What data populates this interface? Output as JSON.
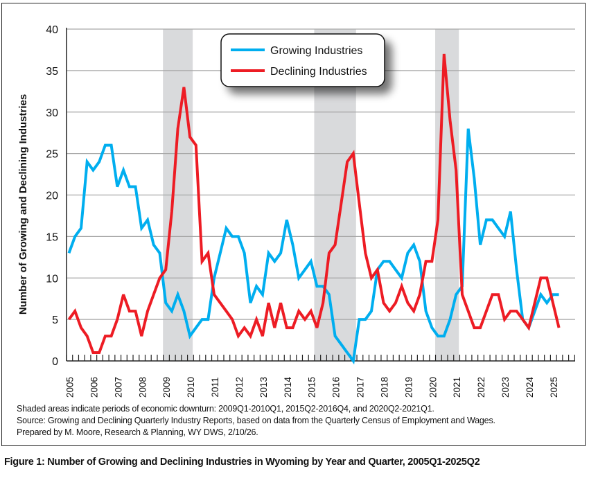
{
  "chart_data": {
    "type": "line",
    "title": "Figure 1: Number of Growing and Declining Industries in Wyoming by Year and Quarter, 2005Q1-2025Q2",
    "ylabel": "Number of Growing and Declining Industries",
    "xlabel": "",
    "ylim": [
      0,
      40
    ],
    "yticks": [
      0,
      5,
      10,
      15,
      20,
      25,
      30,
      35,
      40
    ],
    "xticks": [
      "2005",
      "2006",
      "2007",
      "2008",
      "2009",
      "2010",
      "2011",
      "2012",
      "2013",
      "2014",
      "2015",
      "2016",
      "2017",
      "2018",
      "2019",
      "2020",
      "2021",
      "2022",
      "2023",
      "2024",
      "2025"
    ],
    "x_start": "2005Q1",
    "x_end": "2025Q2",
    "grid": "horizontal",
    "legend_placement": "top-center",
    "shaded_periods": [
      [
        "2009Q1",
        "2010Q1"
      ],
      [
        "2015Q2",
        "2016Q4"
      ],
      [
        "2020Q2",
        "2021Q1"
      ]
    ],
    "shade_color": "#d9dadc",
    "series": [
      {
        "name": "Growing Industries",
        "color": "#00aeef",
        "values": [
          13,
          15,
          16,
          24,
          23,
          24,
          26,
          26,
          21,
          23,
          21,
          21,
          16,
          17,
          14,
          13,
          7,
          6,
          8,
          6,
          3,
          4,
          5,
          5,
          10,
          13,
          16,
          15,
          15,
          13,
          7,
          9,
          8,
          13,
          12,
          13,
          17,
          14,
          10,
          11,
          12,
          9,
          9,
          8,
          3,
          2,
          1,
          0,
          5,
          5,
          6,
          11,
          12,
          12,
          11,
          10,
          13,
          14,
          12,
          6,
          4,
          3,
          3,
          5,
          8,
          9,
          28,
          22,
          14,
          17,
          17,
          16,
          15,
          18,
          11,
          5,
          4,
          6,
          8,
          7,
          8,
          8
        ]
      },
      {
        "name": "Declining Industries",
        "color": "#ed1c24",
        "values": [
          5,
          6,
          4,
          3,
          1,
          1,
          3,
          3,
          5,
          8,
          6,
          6,
          3,
          6,
          8,
          10,
          11,
          18,
          28,
          33,
          27,
          26,
          12,
          13,
          8,
          7,
          6,
          5,
          3,
          4,
          3,
          5,
          3,
          7,
          4,
          7,
          4,
          4,
          6,
          5,
          6,
          4,
          7,
          13,
          14,
          19,
          24,
          25,
          19,
          13,
          10,
          11,
          7,
          6,
          7,
          9,
          7,
          6,
          8,
          12,
          12,
          17,
          37,
          29,
          23,
          8,
          6,
          4,
          4,
          6,
          8,
          8,
          5,
          6,
          6,
          5,
          4,
          7,
          10,
          10,
          7,
          4
        ]
      }
    ]
  },
  "notes": [
    "Shaded areas indicate periods of economic downturn: 2009Q1-2010Q1, 2015Q2-2016Q4, and 2020Q2-2021Q1.",
    "Source: Growing and Declining Quarterly Industry Reports, based on data from the Quarterly Census of Employment and Wages.",
    "Prepared by M. Moore, Research & Planning, WY DWS, 2/10/26."
  ]
}
